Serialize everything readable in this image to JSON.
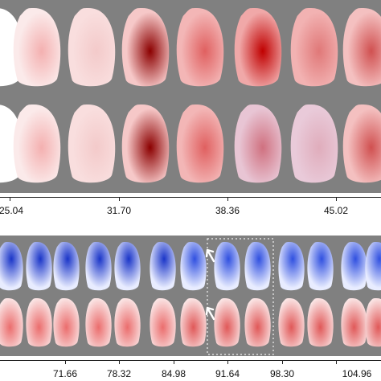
{
  "top_axis": {
    "ticks": [
      "25.04",
      "31.70",
      "38.36",
      "45.02"
    ]
  },
  "bottom_axis": {
    "ticks": [
      "71.66",
      "78.32",
      "84.98",
      "91.64",
      "98.30",
      "104.96"
    ]
  },
  "colors": {
    "background_gray": "#808080",
    "red_positive": "#c00000",
    "blue_negative": "#1f3fd0",
    "white_neutral": "#ffffff"
  },
  "annotations": {
    "highlight_box": "dotted-frame",
    "arrows": [
      "arrow-icon",
      "arrow-icon"
    ]
  }
}
